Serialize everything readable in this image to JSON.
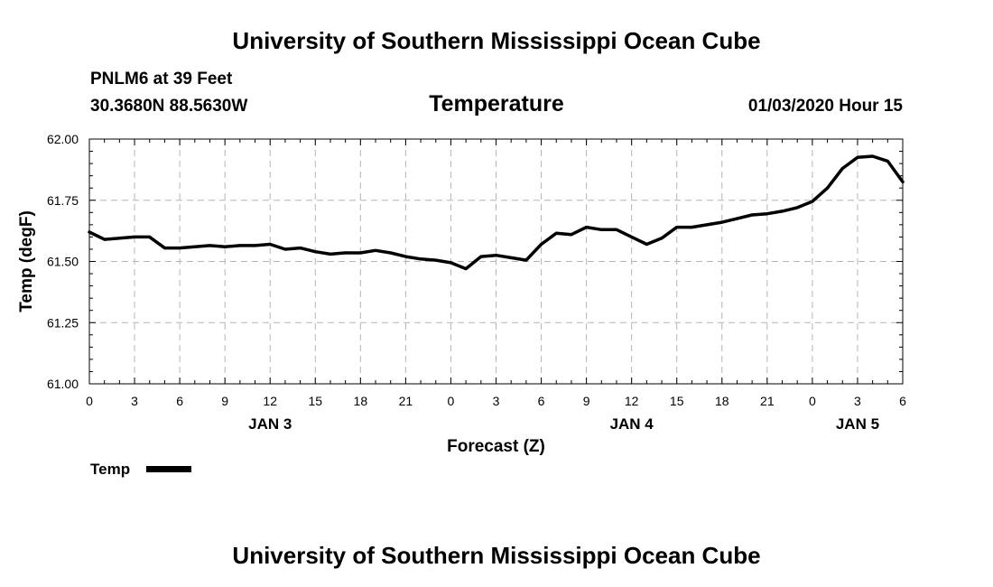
{
  "header": {
    "title_top": "University of Southern Mississippi Ocean Cube",
    "station": "PNLM6 at 39 Feet",
    "coords": "30.3680N 88.5630W",
    "chart_title": "Temperature",
    "run_time": "01/03/2020 Hour 15",
    "title_bottom": "University of Southern Mississippi Ocean Cube"
  },
  "chart_data": {
    "type": "line",
    "title": "Temperature",
    "xlabel": "Forecast (Z)",
    "ylabel": "Temp (degF)",
    "ylim": [
      61.0,
      62.0
    ],
    "yticks": [
      "61.00",
      "61.25",
      "61.50",
      "61.75",
      "62.00"
    ],
    "xlim": [
      0,
      54
    ],
    "xticks": [
      {
        "h": 0,
        "label": "0"
      },
      {
        "h": 3,
        "label": "3"
      },
      {
        "h": 6,
        "label": "6"
      },
      {
        "h": 9,
        "label": "9"
      },
      {
        "h": 12,
        "label": "12"
      },
      {
        "h": 15,
        "label": "15"
      },
      {
        "h": 18,
        "label": "18"
      },
      {
        "h": 21,
        "label": "21"
      },
      {
        "h": 24,
        "label": "0"
      },
      {
        "h": 27,
        "label": "3"
      },
      {
        "h": 30,
        "label": "6"
      },
      {
        "h": 33,
        "label": "9"
      },
      {
        "h": 36,
        "label": "12"
      },
      {
        "h": 39,
        "label": "15"
      },
      {
        "h": 42,
        "label": "18"
      },
      {
        "h": 45,
        "label": "21"
      },
      {
        "h": 48,
        "label": "0"
      },
      {
        "h": 51,
        "label": "3"
      },
      {
        "h": 54,
        "label": "6"
      }
    ],
    "day_labels": [
      {
        "h": 12,
        "label": "JAN 3"
      },
      {
        "h": 36,
        "label": "JAN 4"
      },
      {
        "h": 51,
        "label": "JAN 5"
      }
    ],
    "grid": true,
    "legend": {
      "position": "bottom-left",
      "label": "Temp"
    },
    "series": [
      {
        "name": "Temp",
        "x": [
          0,
          1,
          2,
          3,
          4,
          5,
          6,
          7,
          8,
          9,
          10,
          11,
          12,
          13,
          14,
          15,
          16,
          17,
          18,
          19,
          20,
          21,
          22,
          23,
          24,
          25,
          26,
          27,
          28,
          29,
          30,
          31,
          32,
          33,
          34,
          35,
          36,
          37,
          38,
          39,
          40,
          41,
          42,
          43,
          44,
          45,
          46,
          47,
          48,
          49,
          50,
          51,
          52,
          53,
          54
        ],
        "values": [
          61.62,
          61.59,
          61.595,
          61.6,
          61.6,
          61.555,
          61.555,
          61.56,
          61.565,
          61.56,
          61.565,
          61.565,
          61.57,
          61.55,
          61.555,
          61.54,
          61.53,
          61.535,
          61.535,
          61.545,
          61.535,
          61.52,
          61.51,
          61.505,
          61.495,
          61.47,
          61.52,
          61.525,
          61.515,
          61.505,
          61.57,
          61.615,
          61.61,
          61.64,
          61.63,
          61.63,
          61.6,
          61.57,
          61.595,
          61.64,
          61.64,
          61.65,
          61.66,
          61.675,
          61.69,
          61.695,
          61.705,
          61.72,
          61.745,
          61.8,
          61.88,
          61.925,
          61.93,
          61.91,
          61.825
        ]
      }
    ]
  }
}
